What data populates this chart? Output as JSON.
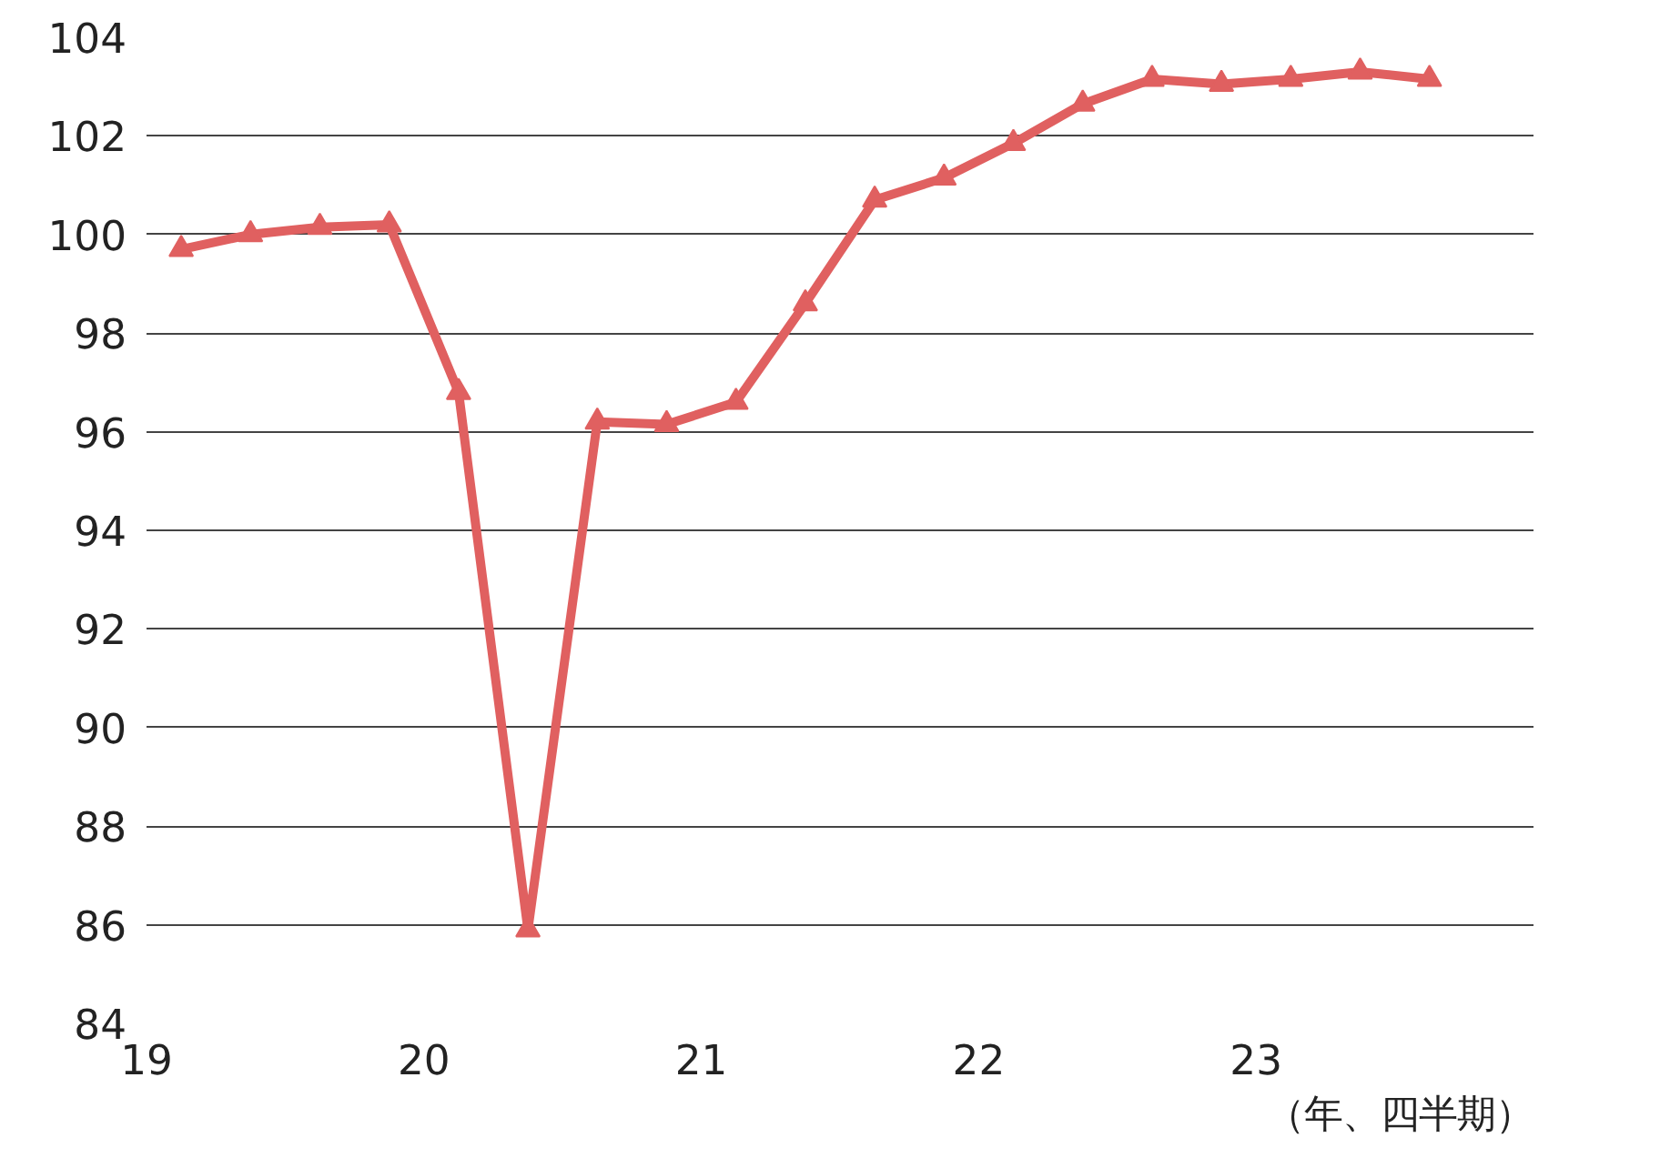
{
  "chart_data": {
    "type": "line",
    "xlabel": "（年、四半期）",
    "x": [
      19.125,
      19.375,
      19.625,
      19.875,
      20.125,
      20.375,
      20.625,
      20.875,
      21.125,
      21.375,
      21.625,
      21.875,
      22.125,
      22.375,
      22.625,
      22.875,
      23.125,
      23.375,
      23.625
    ],
    "series": [
      {
        "color": "#e06060",
        "values": [
          99.7,
          100.0,
          100.15,
          100.2,
          96.8,
          85.9,
          96.2,
          96.15,
          96.6,
          98.6,
          100.7,
          101.15,
          101.85,
          102.65,
          103.15,
          103.05,
          103.15,
          103.3,
          103.15
        ]
      }
    ],
    "xlim": [
      19,
      24
    ],
    "xticks": [
      19,
      20,
      21,
      22,
      23
    ],
    "ylim": [
      84,
      104
    ],
    "yticks": [
      84,
      86,
      88,
      90,
      92,
      94,
      96,
      98,
      100,
      102,
      104
    ],
    "grid": "y",
    "marker": "triangle",
    "line_style": "solid"
  }
}
